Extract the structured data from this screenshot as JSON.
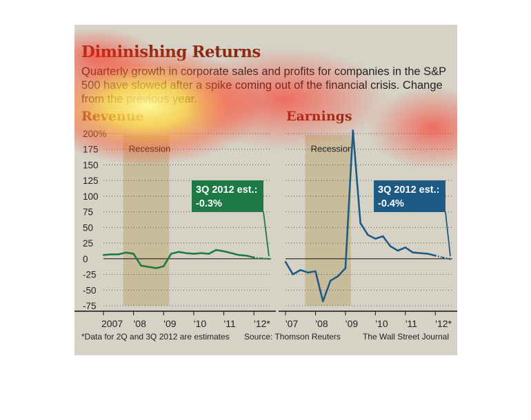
{
  "title": "Diminishing Returns",
  "subtitle": "Quarterly growth in corporate sales and profits for companies in the S&P 500 have slowed after a spike coming out of the financial crisis. Change from the previous year.",
  "footnote": "*Data for 2Q and 3Q 2012 are estimates",
  "source": "Source: Thomson Reuters",
  "credit": "The Wall Street Journal",
  "colors": {
    "revenue": "#1d7a45",
    "earnings": "#1d5a84",
    "recession": "#c4b48c",
    "title": "#8b2a14"
  },
  "chart_data": [
    {
      "type": "line",
      "title": "Revenue",
      "ylim": [
        -75,
        200
      ],
      "y_ticks": [
        "200%",
        "175",
        "150",
        "125",
        "100",
        "75",
        "50",
        "25",
        "0",
        "-25",
        "-50",
        "-75"
      ],
      "x_tick_labels": [
        "2007",
        "'08",
        "'09",
        "'10",
        "'11",
        "'12*"
      ],
      "shaded_region_label": "Recession",
      "annotation": {
        "title": "3Q 2012 est.:",
        "value": "-0.3%"
      },
      "series": [
        {
          "values": [
            {
              "x": "2007-Q1",
              "y": 6
            },
            {
              "x": "2007-Q2",
              "y": 7
            },
            {
              "x": "2007-Q3",
              "y": 7
            },
            {
              "x": "2007-Q4",
              "y": 10
            },
            {
              "x": "2008-Q1",
              "y": 8
            },
            {
              "x": "2008-Q2",
              "y": -11
            },
            {
              "x": "2008-Q3",
              "y": -13
            },
            {
              "x": "2008-Q4",
              "y": -15
            },
            {
              "x": "2009-Q1",
              "y": -12
            },
            {
              "x": "2009-Q2",
              "y": 8
            },
            {
              "x": "2009-Q3",
              "y": 11
            },
            {
              "x": "2009-Q4",
              "y": 9
            },
            {
              "x": "2010-Q1",
              "y": 8
            },
            {
              "x": "2010-Q2",
              "y": 9
            },
            {
              "x": "2010-Q3",
              "y": 8
            },
            {
              "x": "2010-Q4",
              "y": 14
            },
            {
              "x": "2011-Q1",
              "y": 12
            },
            {
              "x": "2011-Q2",
              "y": 9
            },
            {
              "x": "2011-Q3",
              "y": 6
            },
            {
              "x": "2011-Q4",
              "y": 5
            },
            {
              "x": "2012-Q1",
              "y": 2
            },
            {
              "x": "2012-Q2",
              "y": 0.5,
              "estimate": true
            },
            {
              "x": "2012-Q3",
              "y": -0.3,
              "estimate": true
            }
          ]
        }
      ]
    },
    {
      "type": "line",
      "title": "Earnings",
      "ylim": [
        -75,
        200
      ],
      "x_tick_labels": [
        "'07",
        "'08",
        "'09",
        "'10",
        "'11",
        "'12*"
      ],
      "shaded_region_label": "Recession",
      "annotation": {
        "title": "3Q 2012 est.:",
        "value": "-0.4%"
      },
      "series": [
        {
          "values": [
            {
              "x": "2007-Q1",
              "y": -5
            },
            {
              "x": "2007-Q2",
              "y": -25
            },
            {
              "x": "2007-Q3",
              "y": -18
            },
            {
              "x": "2007-Q4",
              "y": -22
            },
            {
              "x": "2008-Q1",
              "y": -20
            },
            {
              "x": "2008-Q2",
              "y": -68
            },
            {
              "x": "2008-Q3",
              "y": -35
            },
            {
              "x": "2008-Q4",
              "y": -28
            },
            {
              "x": "2009-Q1",
              "y": -15
            },
            {
              "x": "2009-Q2",
              "y": 205
            },
            {
              "x": "2009-Q3",
              "y": 57
            },
            {
              "x": "2009-Q4",
              "y": 38
            },
            {
              "x": "2010-Q1",
              "y": 32
            },
            {
              "x": "2010-Q2",
              "y": 36
            },
            {
              "x": "2010-Q3",
              "y": 20
            },
            {
              "x": "2010-Q4",
              "y": 13
            },
            {
              "x": "2011-Q1",
              "y": 18
            },
            {
              "x": "2011-Q2",
              "y": 10
            },
            {
              "x": "2011-Q3",
              "y": 9
            },
            {
              "x": "2011-Q4",
              "y": 8
            },
            {
              "x": "2012-Q1",
              "y": 5
            },
            {
              "x": "2012-Q2",
              "y": 2,
              "estimate": true
            },
            {
              "x": "2012-Q3",
              "y": -0.4,
              "estimate": true
            }
          ]
        }
      ]
    }
  ]
}
